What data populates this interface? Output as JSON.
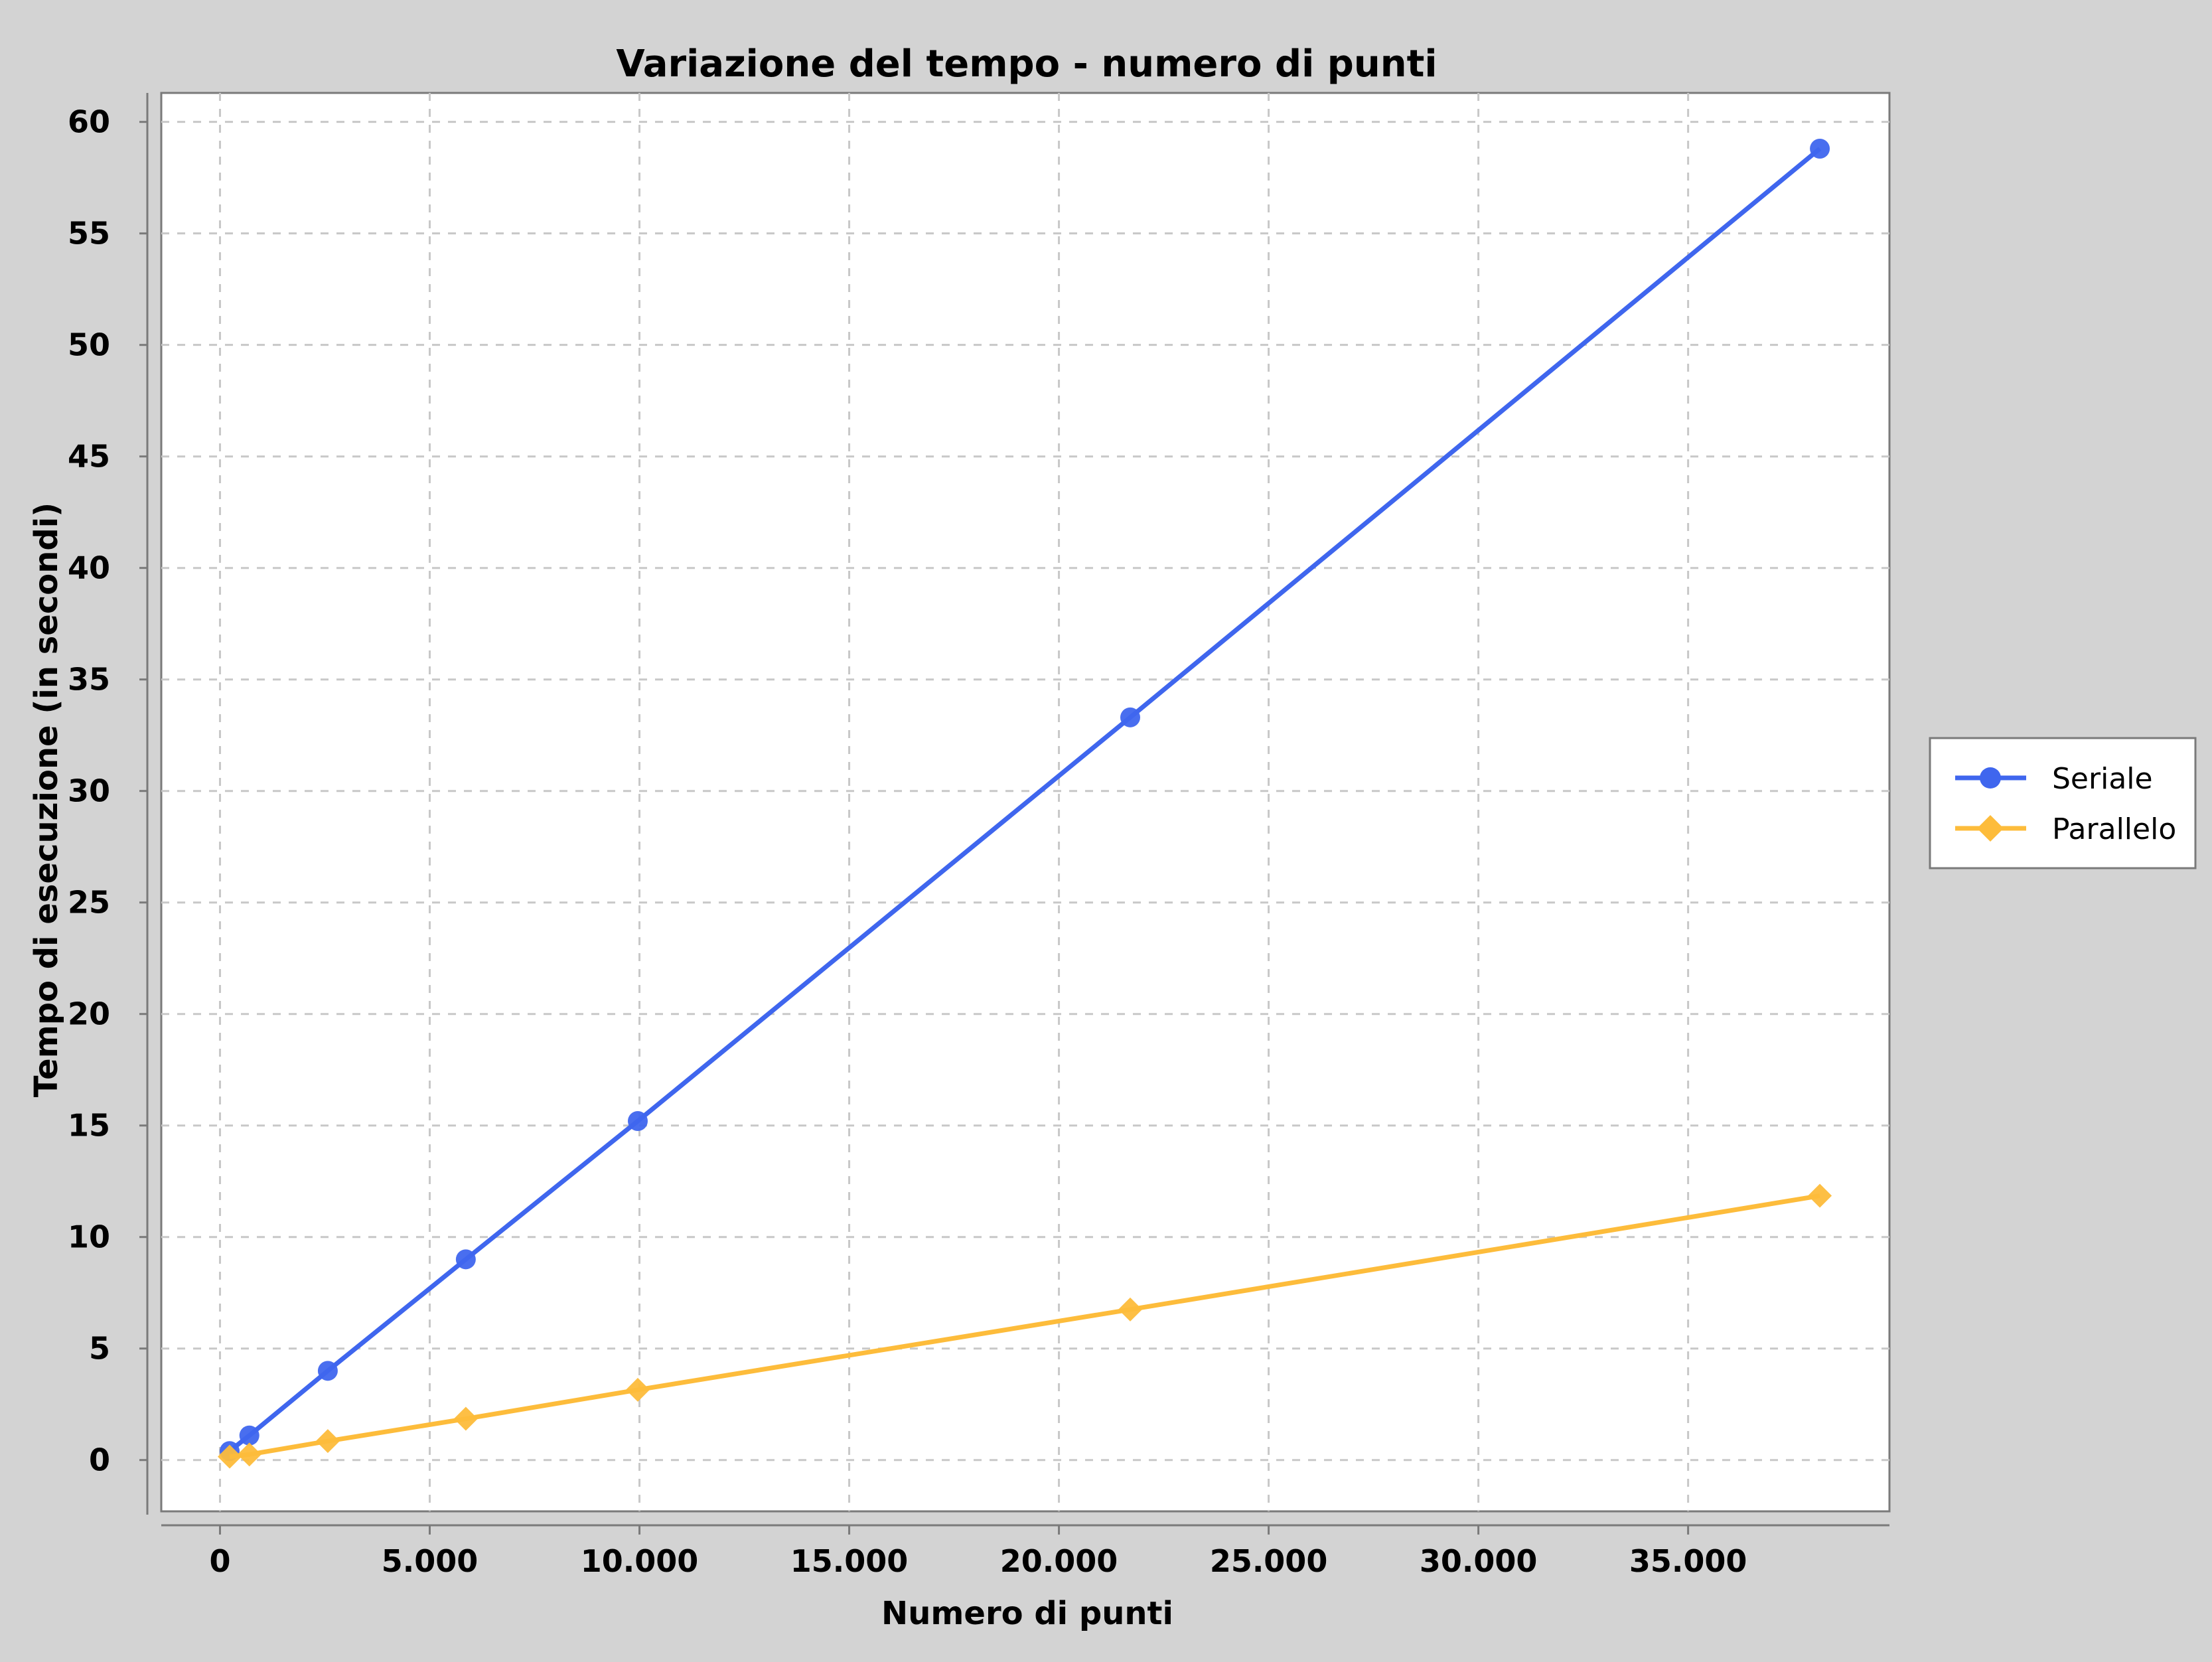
{
  "chart_data": {
    "type": "line",
    "title": "Variazione del tempo - numero di punti",
    "xlabel": "Numero di punti",
    "ylabel": "Tempo di esecuzione (in secondi)",
    "xlim": [
      -1400,
      39800
    ],
    "ylim": [
      -2.3,
      61.3
    ],
    "x_ticks": [
      0,
      5000,
      10000,
      15000,
      20000,
      25000,
      30000,
      35000
    ],
    "x_tick_labels": [
      "0",
      "5.000",
      "10.000",
      "15.000",
      "20.000",
      "25.000",
      "30.000",
      "35.000"
    ],
    "y_ticks": [
      0,
      5,
      10,
      15,
      20,
      25,
      30,
      35,
      40,
      45,
      50,
      55,
      60
    ],
    "y_tick_labels": [
      "0",
      "5",
      "10",
      "15",
      "20",
      "25",
      "30",
      "35",
      "40",
      "45",
      "50",
      "55",
      "60"
    ],
    "grid": true,
    "legend_position": "right",
    "series": [
      {
        "name": "Seriale",
        "color": "#3f66ee",
        "marker": "circle",
        "x": [
          230,
          700,
          2570,
          5860,
          9960,
          21700,
          38140
        ],
        "y": [
          0.4,
          1.1,
          4.0,
          9.0,
          15.2,
          33.3,
          58.8
        ]
      },
      {
        "name": "Parallelo",
        "color": "#fdbc3b",
        "marker": "diamond",
        "x": [
          230,
          700,
          2570,
          5860,
          9960,
          21700,
          38140
        ],
        "y": [
          0.15,
          0.25,
          0.85,
          1.85,
          3.15,
          6.75,
          11.85
        ]
      }
    ]
  }
}
